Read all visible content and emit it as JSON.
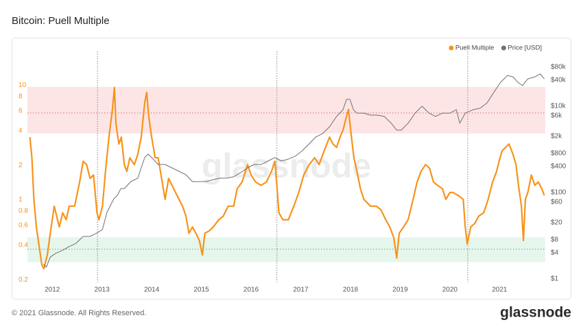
{
  "chart_data": {
    "type": "line",
    "title": "Bitcoin: Puell Multiple",
    "watermark": "glassnode",
    "xlim": [
      2011.5,
      2021.92
    ],
    "xticks": [
      2012,
      2013,
      2014,
      2015,
      2016,
      2017,
      2018,
      2019,
      2020,
      2021
    ],
    "ylim": [
      0.19,
      18.5
    ],
    "yticks": [
      0.2,
      0.4,
      0.6,
      0.8,
      1,
      2,
      4,
      6,
      8,
      10
    ],
    "log_y": true,
    "y2lim": [
      0.83,
      155000
    ],
    "log_y2": true,
    "y2ticks": [
      {
        "value": 1,
        "label": "$1"
      },
      {
        "value": 4,
        "label": "$4"
      },
      {
        "value": 8,
        "label": "$8"
      },
      {
        "value": 20,
        "label": "$20"
      },
      {
        "value": 60,
        "label": "$60"
      },
      {
        "value": 100,
        "label": "$100"
      },
      {
        "value": 400,
        "label": "$400"
      },
      {
        "value": 800,
        "label": "$800"
      },
      {
        "value": 2000,
        "label": "$2k"
      },
      {
        "value": 6000,
        "label": "$6k"
      },
      {
        "value": 10000,
        "label": "$10k"
      },
      {
        "value": 40000,
        "label": "$40k"
      },
      {
        "value": 80000,
        "label": "$80k"
      }
    ],
    "legend": "top-right",
    "bands": [
      {
        "from": 3.8,
        "to": 9.7,
        "line": 5.74,
        "color": "#fde5e5",
        "line_color": "#e06666"
      },
      {
        "from": 0.285,
        "to": 0.47,
        "line": 0.37,
        "color": "#e6f6ec",
        "line_color": "#5cb37a"
      }
    ],
    "vlines": [
      2012.91,
      2016.52,
      2020.36
    ],
    "series": [
      {
        "name": "Puell Multiple",
        "color": "#f7931a",
        "x": [
          2011.55,
          2011.59,
          2011.63,
          2011.68,
          2011.74,
          2011.79,
          2011.83,
          2011.9,
          2011.96,
          2012.04,
          2012.14,
          2012.21,
          2012.28,
          2012.34,
          2012.45,
          2012.55,
          2012.62,
          2012.69,
          2012.76,
          2012.83,
          2012.9,
          2012.94,
          2013.01,
          2013.07,
          2013.14,
          2013.21,
          2013.25,
          2013.28,
          2013.34,
          2013.39,
          2013.45,
          2013.5,
          2013.56,
          2013.65,
          2013.72,
          2013.79,
          2013.86,
          2013.9,
          2013.94,
          2014.0,
          2014.07,
          2014.13,
          2014.2,
          2014.27,
          2014.34,
          2014.41,
          2014.48,
          2014.55,
          2014.62,
          2014.69,
          2014.75,
          2014.82,
          2014.89,
          2014.96,
          2015.02,
          2015.07,
          2015.17,
          2015.24,
          2015.35,
          2015.44,
          2015.54,
          2015.65,
          2015.72,
          2015.82,
          2015.93,
          2016.0,
          2016.09,
          2016.2,
          2016.31,
          2016.41,
          2016.48,
          2016.53,
          2016.56,
          2016.64,
          2016.75,
          2016.86,
          2016.96,
          2017.06,
          2017.17,
          2017.28,
          2017.37,
          2017.47,
          2017.58,
          2017.65,
          2017.72,
          2017.79,
          2017.85,
          2017.92,
          2017.96,
          2018.02,
          2018.07,
          2018.13,
          2018.2,
          2018.27,
          2018.4,
          2018.52,
          2018.61,
          2018.71,
          2018.79,
          2018.87,
          2018.93,
          2018.98,
          2019.07,
          2019.16,
          2019.26,
          2019.34,
          2019.42,
          2019.51,
          2019.59,
          2019.67,
          2019.75,
          2019.85,
          2019.92,
          2020.0,
          2020.06,
          2020.17,
          2020.27,
          2020.31,
          2020.35,
          2020.42,
          2020.5,
          2020.58,
          2020.68,
          2020.77,
          2020.86,
          2020.94,
          2020.99,
          2021.05,
          2021.12,
          2021.19,
          2021.27,
          2021.33,
          2021.38,
          2021.44,
          2021.48,
          2021.52,
          2021.57,
          2021.64,
          2021.71,
          2021.78,
          2021.85,
          2021.9
        ],
        "values": [
          3.53,
          2.33,
          1.01,
          0.58,
          0.38,
          0.27,
          0.25,
          0.33,
          0.51,
          0.88,
          0.58,
          0.77,
          0.67,
          0.88,
          0.88,
          1.43,
          2.17,
          2.03,
          1.54,
          1.65,
          0.77,
          0.67,
          0.88,
          1.77,
          3.53,
          6.15,
          9.6,
          4.66,
          3.07,
          3.53,
          2.03,
          1.77,
          2.33,
          2.03,
          2.5,
          3.53,
          7.07,
          8.7,
          5.36,
          3.53,
          2.33,
          2.33,
          1.54,
          1.01,
          1.54,
          1.34,
          1.16,
          1.01,
          0.88,
          0.72,
          0.51,
          0.58,
          0.51,
          0.44,
          0.33,
          0.51,
          0.54,
          0.58,
          0.67,
          0.72,
          0.88,
          0.88,
          1.25,
          1.43,
          2.03,
          1.65,
          1.43,
          1.34,
          1.43,
          1.77,
          2.17,
          1.16,
          0.77,
          0.67,
          0.67,
          0.88,
          1.16,
          1.65,
          2.03,
          2.33,
          2.03,
          2.68,
          3.53,
          3.07,
          2.87,
          3.53,
          4.06,
          5.36,
          6.15,
          3.53,
          2.33,
          1.77,
          1.25,
          1.01,
          0.88,
          0.88,
          0.82,
          0.67,
          0.58,
          0.47,
          0.31,
          0.51,
          0.58,
          0.67,
          1.01,
          1.43,
          1.77,
          2.03,
          1.89,
          1.43,
          1.34,
          1.25,
          1.01,
          1.16,
          1.16,
          1.09,
          1.01,
          0.58,
          0.41,
          0.58,
          0.62,
          0.72,
          0.77,
          1.01,
          1.43,
          1.77,
          2.17,
          2.68,
          2.87,
          3.07,
          2.5,
          2.03,
          1.34,
          0.88,
          0.44,
          1.01,
          1.16,
          1.65,
          1.34,
          1.43,
          1.25,
          1.09
        ]
      },
      {
        "name": "Price [USD]",
        "color": "#707070",
        "axis": "y2",
        "x": [
          2011.82,
          2011.88,
          2011.96,
          2012.07,
          2012.21,
          2012.34,
          2012.48,
          2012.62,
          2012.76,
          2012.9,
          2013.01,
          2013.1,
          2013.17,
          2013.24,
          2013.31,
          2013.38,
          2013.45,
          2013.58,
          2013.72,
          2013.79,
          2013.86,
          2013.93,
          2014.0,
          2014.13,
          2014.27,
          2014.41,
          2014.55,
          2014.69,
          2014.82,
          2014.96,
          2015.1,
          2015.24,
          2015.37,
          2015.51,
          2015.65,
          2015.79,
          2015.93,
          2016.06,
          2016.2,
          2016.34,
          2016.48,
          2016.61,
          2016.75,
          2016.89,
          2017.03,
          2017.17,
          2017.3,
          2017.44,
          2017.58,
          2017.72,
          2017.85,
          2017.92,
          2017.99,
          2018.06,
          2018.13,
          2018.27,
          2018.4,
          2018.54,
          2018.68,
          2018.82,
          2018.93,
          2019.02,
          2019.16,
          2019.3,
          2019.44,
          2019.58,
          2019.71,
          2019.85,
          2020.0,
          2020.13,
          2020.2,
          2020.31,
          2020.47,
          2020.61,
          2020.75,
          2020.88,
          2021.02,
          2021.16,
          2021.27,
          2021.37,
          2021.46,
          2021.57,
          2021.71,
          2021.82,
          2021.9
        ],
        "values": [
          2.2,
          1.86,
          3.2,
          3.9,
          4.6,
          5.6,
          6.7,
          9.6,
          9.6,
          11.6,
          13.9,
          34.6,
          50,
          72,
          86,
          124,
          124,
          179,
          215,
          372,
          645,
          776,
          645,
          447,
          447,
          372,
          310,
          258,
          179,
          179,
          179,
          200,
          215,
          215,
          232,
          290,
          372,
          447,
          447,
          536,
          645,
          536,
          596,
          694,
          930,
          1340,
          1930,
          2320,
          3340,
          5800,
          8300,
          14400,
          14400,
          8300,
          6900,
          6900,
          6200,
          6200,
          5800,
          4040,
          2790,
          2790,
          4040,
          6900,
          10000,
          6900,
          5800,
          6900,
          6900,
          8300,
          4040,
          6900,
          8300,
          9000,
          12000,
          20500,
          35800,
          51600,
          48000,
          35800,
          30000,
          43000,
          48000,
          55800,
          43000
        ]
      }
    ]
  },
  "footer": "© 2021 Glassnode. All Rights Reserved.",
  "logo": "glassnode"
}
